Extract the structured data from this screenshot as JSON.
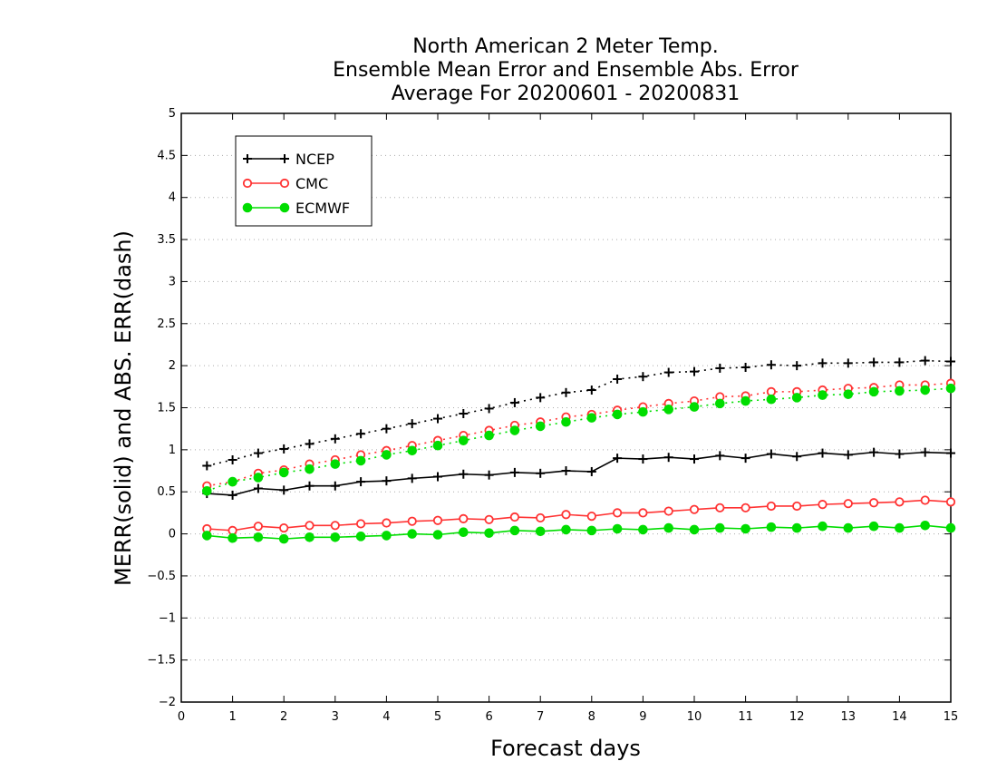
{
  "chart_data": {
    "type": "line",
    "title_lines": [
      "North American 2 Meter Temp.",
      "Ensemble Mean Error and Ensemble Abs. Error",
      "Average For 20200601 - 20200831"
    ],
    "xlabel": "Forecast days",
    "ylabel": "MERR(solid) and ABS. ERR(dash)",
    "xlim": [
      0,
      15
    ],
    "ylim": [
      -2,
      5
    ],
    "x_ticks": [
      "0",
      "1",
      "2",
      "3",
      "4",
      "5",
      "6",
      "7",
      "8",
      "9",
      "10",
      "11",
      "12",
      "13",
      "14",
      "15"
    ],
    "y_ticks": [
      "−2",
      "−1.5",
      "−1",
      "−0.5",
      "0",
      "0.5",
      "1",
      "1.5",
      "2",
      "2.5",
      "3",
      "3.5",
      "4",
      "4.5",
      "5"
    ],
    "grid": "horizontal dotted",
    "legend_position": "top-left",
    "x": [
      0.5,
      1,
      1.5,
      2,
      2.5,
      3,
      3.5,
      4,
      4.5,
      5,
      5.5,
      6,
      6.5,
      7,
      7.5,
      8,
      8.5,
      9,
      9.5,
      10,
      10.5,
      11,
      11.5,
      12,
      12.5,
      13,
      13.5,
      14,
      14.5,
      15
    ],
    "series": [
      {
        "name": "NCEP",
        "color": "#000000",
        "marker": "plus",
        "mean_error": [
          0.48,
          0.46,
          0.54,
          0.52,
          0.57,
          0.57,
          0.62,
          0.63,
          0.66,
          0.68,
          0.71,
          0.7,
          0.73,
          0.72,
          0.75,
          0.74,
          0.9,
          0.89,
          0.91,
          0.89,
          0.93,
          0.9,
          0.95,
          0.92,
          0.96,
          0.94,
          0.97,
          0.95,
          0.97,
          0.96
        ],
        "abs_error": [
          0.81,
          0.88,
          0.96,
          1.01,
          1.07,
          1.13,
          1.19,
          1.25,
          1.31,
          1.37,
          1.43,
          1.49,
          1.56,
          1.62,
          1.68,
          1.71,
          1.84,
          1.87,
          1.92,
          1.93,
          1.97,
          1.98,
          2.01,
          2.0,
          2.03,
          2.03,
          2.04,
          2.04,
          2.06,
          2.05
        ]
      },
      {
        "name": "CMC",
        "color": "#ff3333",
        "marker": "open-circle",
        "mean_error": [
          0.06,
          0.04,
          0.09,
          0.07,
          0.1,
          0.1,
          0.12,
          0.13,
          0.15,
          0.16,
          0.18,
          0.17,
          0.2,
          0.19,
          0.23,
          0.21,
          0.25,
          0.25,
          0.27,
          0.29,
          0.31,
          0.31,
          0.33,
          0.33,
          0.35,
          0.36,
          0.37,
          0.38,
          0.4,
          0.38
        ],
        "abs_error": [
          0.57,
          0.62,
          0.72,
          0.76,
          0.83,
          0.88,
          0.94,
          0.99,
          1.05,
          1.11,
          1.17,
          1.23,
          1.29,
          1.33,
          1.39,
          1.42,
          1.47,
          1.51,
          1.55,
          1.58,
          1.63,
          1.64,
          1.69,
          1.69,
          1.71,
          1.73,
          1.74,
          1.77,
          1.77,
          1.79
        ]
      },
      {
        "name": "ECMWF",
        "color": "#00dd00",
        "marker": "filled-circle",
        "mean_error": [
          -0.02,
          -0.05,
          -0.04,
          -0.06,
          -0.04,
          -0.04,
          -0.03,
          -0.02,
          0.0,
          -0.01,
          0.02,
          0.01,
          0.04,
          0.03,
          0.05,
          0.04,
          0.06,
          0.05,
          0.07,
          0.05,
          0.07,
          0.06,
          0.08,
          0.07,
          0.09,
          0.07,
          0.09,
          0.07,
          0.1,
          0.07
        ],
        "abs_error": [
          0.51,
          0.62,
          0.67,
          0.73,
          0.77,
          0.83,
          0.87,
          0.94,
          0.99,
          1.05,
          1.11,
          1.17,
          1.23,
          1.28,
          1.33,
          1.38,
          1.42,
          1.45,
          1.48,
          1.51,
          1.55,
          1.58,
          1.6,
          1.62,
          1.65,
          1.66,
          1.69,
          1.7,
          1.71,
          1.73
        ]
      }
    ]
  }
}
